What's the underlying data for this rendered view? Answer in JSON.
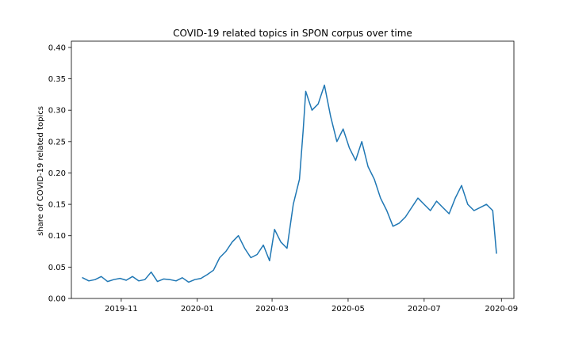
{
  "chart_data": {
    "type": "line",
    "title": "COVID-19 related topics in SPON corpus over time",
    "xlabel": "",
    "ylabel": "share of COVID-19 related topics",
    "xlim": [
      "2019-09-22",
      "2020-09-11"
    ],
    "ylim": [
      0.0,
      0.41
    ],
    "x_ticks": [
      {
        "date": "2019-11-01",
        "label": "2019-11"
      },
      {
        "date": "2020-01-01",
        "label": "2020-01"
      },
      {
        "date": "2020-03-01",
        "label": "2020-03"
      },
      {
        "date": "2020-05-01",
        "label": "2020-05"
      },
      {
        "date": "2020-07-01",
        "label": "2020-07"
      },
      {
        "date": "2020-09-01",
        "label": "2020-09"
      }
    ],
    "y_ticks": [
      "0.00",
      "0.05",
      "0.10",
      "0.15",
      "0.20",
      "0.25",
      "0.30",
      "0.35",
      "0.40"
    ],
    "grid": false,
    "series": [
      {
        "color": "#1f77b4",
        "x": [
          "2019-10-01",
          "2019-10-06",
          "2019-10-11",
          "2019-10-16",
          "2019-10-21",
          "2019-10-26",
          "2019-10-31",
          "2019-11-05",
          "2019-11-10",
          "2019-11-15",
          "2019-11-20",
          "2019-11-25",
          "2019-11-30",
          "2019-12-05",
          "2019-12-10",
          "2019-12-15",
          "2019-12-20",
          "2019-12-25",
          "2019-12-30",
          "2020-01-04",
          "2020-01-09",
          "2020-01-14",
          "2020-01-19",
          "2020-01-24",
          "2020-01-29",
          "2020-02-03",
          "2020-02-08",
          "2020-02-13",
          "2020-02-18",
          "2020-02-23",
          "2020-02-28",
          "2020-03-03",
          "2020-03-08",
          "2020-03-13",
          "2020-03-18",
          "2020-03-23",
          "2020-03-26",
          "2020-03-28",
          "2020-04-02",
          "2020-04-07",
          "2020-04-12",
          "2020-04-17",
          "2020-04-22",
          "2020-04-27",
          "2020-05-02",
          "2020-05-07",
          "2020-05-12",
          "2020-05-17",
          "2020-05-22",
          "2020-05-27",
          "2020-06-01",
          "2020-06-06",
          "2020-06-11",
          "2020-06-16",
          "2020-06-21",
          "2020-06-26",
          "2020-07-01",
          "2020-07-06",
          "2020-07-11",
          "2020-07-16",
          "2020-07-21",
          "2020-07-26",
          "2020-07-31",
          "2020-08-05",
          "2020-08-10",
          "2020-08-15",
          "2020-08-20",
          "2020-08-25",
          "2020-08-28"
        ],
        "y": [
          0.033,
          0.028,
          0.03,
          0.035,
          0.027,
          0.03,
          0.032,
          0.029,
          0.035,
          0.028,
          0.03,
          0.042,
          0.027,
          0.031,
          0.03,
          0.028,
          0.033,
          0.026,
          0.03,
          0.032,
          0.038,
          0.045,
          0.065,
          0.075,
          0.09,
          0.1,
          0.08,
          0.065,
          0.07,
          0.085,
          0.06,
          0.11,
          0.09,
          0.08,
          0.15,
          0.19,
          0.27,
          0.33,
          0.3,
          0.31,
          0.34,
          0.29,
          0.25,
          0.27,
          0.24,
          0.22,
          0.25,
          0.21,
          0.19,
          0.16,
          0.14,
          0.115,
          0.12,
          0.13,
          0.145,
          0.16,
          0.15,
          0.14,
          0.155,
          0.145,
          0.135,
          0.16,
          0.18,
          0.15,
          0.14,
          0.145,
          0.15,
          0.14,
          0.072
        ]
      }
    ]
  }
}
